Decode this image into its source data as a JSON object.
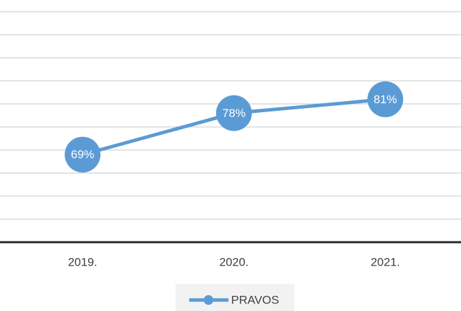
{
  "chart_data": {
    "type": "line",
    "categories": [
      "2019.",
      "2020.",
      "2021."
    ],
    "series": [
      {
        "name": "PRAVOS",
        "color": "#5b9bd5",
        "values": [
          69,
          78,
          81
        ],
        "value_labels": [
          "69%",
          "78%",
          "81%"
        ]
      }
    ],
    "ylim": [
      50,
      100
    ],
    "yticks": [
      50,
      55,
      60,
      65,
      70,
      75,
      80,
      85,
      90,
      95,
      100
    ],
    "grid": true
  }
}
